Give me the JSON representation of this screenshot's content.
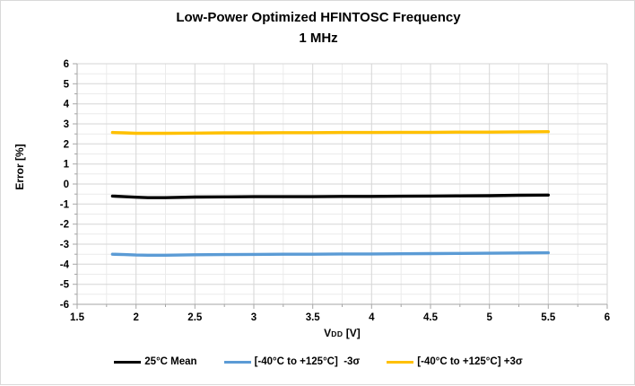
{
  "chart": {
    "title_line1": "Low-Power Optimized HFINTOSC Frequency",
    "title_line2": "1 MHz",
    "y_axis": {
      "title": "Error [%]",
      "tick_labels": [
        "6",
        "5",
        "4",
        "3",
        "2",
        "1",
        "0",
        "-1",
        "-2",
        "-3",
        "-4",
        "-5",
        "-6"
      ]
    },
    "x_axis": {
      "title_main": "V",
      "title_sub": "DD",
      "title_unit": " [V]",
      "tick_labels": [
        "1.5",
        "2",
        "2.5",
        "3",
        "3.5",
        "4",
        "4.5",
        "5",
        "5.5",
        "6"
      ]
    },
    "colors": {
      "mean_line": "#000000",
      "minus3sigma_line": "#5b9bd5",
      "plus3sigma_line": "#ffc000",
      "major_grid": "#d6d6d6",
      "minor_grid": "#ebebeb",
      "axis": "#a6a6a6",
      "border": "#d9d9d9",
      "text": "#000000"
    }
  },
  "chart_data": {
    "type": "line",
    "title": "Low-Power Optimized HFINTOSC Frequency",
    "subtitle": "1 MHz",
    "xlabel": "VDD [V]",
    "ylabel": "Error [%]",
    "xlim": [
      1.5,
      6
    ],
    "ylim": [
      -6,
      6
    ],
    "x_major_step": 0.5,
    "x_minor_step": 0.25,
    "y_major_step": 1,
    "y_minor_step": 0.5,
    "grid": "major and minor gridlines, light gray, both axes",
    "legend_position": "bottom-center horizontal",
    "x": [
      1.8,
      1.9,
      2.0,
      2.1,
      2.25,
      2.5,
      2.75,
      3.0,
      3.25,
      3.5,
      3.75,
      4.0,
      4.25,
      4.5,
      4.75,
      5.0,
      5.25,
      5.5
    ],
    "series": [
      {
        "name": "25°C Mean",
        "color": "#000000",
        "values": [
          -0.6,
          -0.63,
          -0.66,
          -0.68,
          -0.68,
          -0.65,
          -0.64,
          -0.63,
          -0.63,
          -0.63,
          -0.62,
          -0.62,
          -0.61,
          -0.6,
          -0.59,
          -0.58,
          -0.56,
          -0.55
        ]
      },
      {
        "name": "[-40°C to +125°C]  -3σ",
        "color": "#5b9bd5",
        "values": [
          -3.5,
          -3.52,
          -3.54,
          -3.55,
          -3.55,
          -3.53,
          -3.52,
          -3.51,
          -3.5,
          -3.5,
          -3.49,
          -3.49,
          -3.48,
          -3.47,
          -3.46,
          -3.45,
          -3.44,
          -3.43
        ]
      },
      {
        "name": "[-40°C to +125°C] +3σ",
        "color": "#ffc000",
        "values": [
          2.57,
          2.55,
          2.53,
          2.53,
          2.53,
          2.54,
          2.55,
          2.55,
          2.56,
          2.56,
          2.57,
          2.57,
          2.58,
          2.58,
          2.59,
          2.59,
          2.6,
          2.61
        ]
      }
    ]
  }
}
